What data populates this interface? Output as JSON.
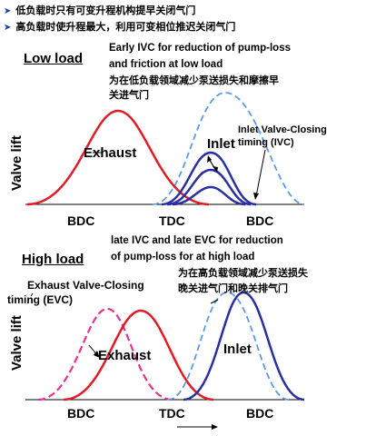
{
  "bullets": [
    "低负载时只有可变升程机构提早关闭气门",
    "高负载时使升程最大，利用可变相位推迟关闭气门"
  ],
  "low": {
    "section": "Low load",
    "anno_en_1": "Early IVC for reduction of pump-loss",
    "anno_en_2": "and friction at low load",
    "anno_zh_1": "为在低负载领域减少泵送损失和摩擦早",
    "anno_zh_2": "关进气门",
    "ivc_1": "Inlet Valve-Closing",
    "ivc_2": "timing (IVC)",
    "exhaust": "Exhaust",
    "inlet": "Inlet",
    "ylabel": "Valve lift",
    "ticks": [
      "BDC",
      "TDC",
      "BDC"
    ]
  },
  "high": {
    "section": "High load",
    "anno_en_1": "late IVC and late EVC for reduction",
    "anno_en_2": "of pump-loss for  at high load",
    "anno_zh_1": "为在高负载领域减少泵送损失",
    "anno_zh_2": "晚关进气门和晚关排气门",
    "evc_1": "Exhaust Valve-Closing",
    "evc_2": "timing (EVC)",
    "exhaust": "Exhaust",
    "inlet": "Inlet",
    "ylabel": "Valve lift",
    "ticks": [
      "BDC",
      "TDC",
      "BDC"
    ]
  },
  "colors": {
    "exhaust": "#e01c24",
    "exhaust_shifted": "#e8338c",
    "inlet": "#2a2fa0",
    "inlet_reference": "#5b9be6",
    "bullet_marker": "#1a3fa8"
  }
}
